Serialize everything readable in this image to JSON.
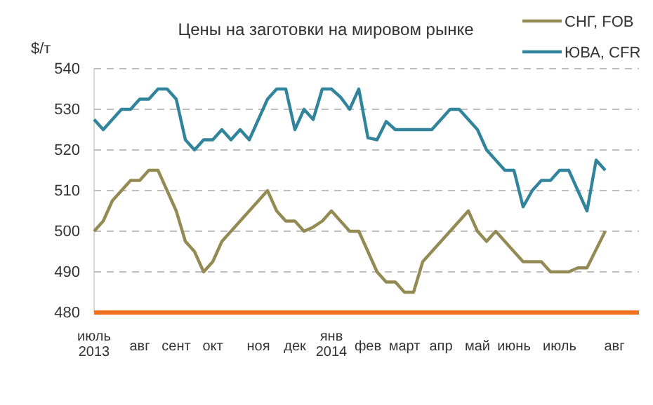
{
  "chart_data": {
    "type": "line",
    "title": "Цены на заготовки на мировом рынке",
    "ylabel": "$/т",
    "categories": [
      "июль 2013",
      null,
      null,
      null,
      null,
      "авг",
      null,
      null,
      null,
      "сент",
      null,
      null,
      null,
      "окт",
      null,
      null,
      null,
      null,
      "ноя",
      null,
      null,
      null,
      "дек",
      null,
      null,
      null,
      "янв 2014",
      null,
      null,
      null,
      "фев",
      null,
      null,
      null,
      "март",
      null,
      null,
      null,
      "апр",
      null,
      null,
      null,
      "май",
      null,
      null,
      null,
      "июнь",
      null,
      null,
      null,
      null,
      "июль",
      null,
      null,
      null,
      null,
      null,
      "авг"
    ],
    "series": [
      {
        "name": "СНГ, FOB",
        "color": "#948a54",
        "values": [
          500,
          502.5,
          507.5,
          510,
          512.5,
          512.5,
          515,
          515,
          510,
          505,
          497.5,
          495,
          490,
          492.5,
          497.5,
          500,
          502.5,
          505,
          507.5,
          510,
          505,
          502.5,
          502.5,
          500,
          501,
          502.5,
          505,
          502.5,
          500,
          500,
          495,
          490,
          487.5,
          487.5,
          485,
          485,
          492.5,
          495,
          497.5,
          500,
          502.5,
          505,
          500,
          497.5,
          500,
          497.5,
          495,
          492.5,
          492.5,
          492.5,
          490,
          490,
          490,
          491,
          491,
          495.5,
          500,
          null
        ]
      },
      {
        "name": "ЮВА, CFR",
        "color": "#31849b",
        "values": [
          527.5,
          525,
          527.5,
          530,
          530,
          532.5,
          532.5,
          535,
          535,
          532.5,
          522.5,
          520,
          522.5,
          522.5,
          525,
          522.5,
          525,
          522.5,
          527.5,
          532.5,
          535,
          535,
          525,
          530,
          527.5,
          535,
          535,
          533,
          530,
          535,
          523,
          522.5,
          527,
          525,
          525,
          525,
          525,
          525,
          527.5,
          530,
          530,
          527.5,
          525,
          520,
          517.5,
          515,
          515,
          506,
          510,
          512.5,
          512.5,
          515,
          515,
          510,
          505,
          517.5,
          515,
          null
        ]
      }
    ],
    "ylim": [
      480,
      540
    ],
    "yticks": [
      480,
      490,
      500,
      510,
      520,
      530,
      540
    ],
    "grid": "y",
    "legend": "top right",
    "line_style": "solid",
    "marker": "none"
  }
}
